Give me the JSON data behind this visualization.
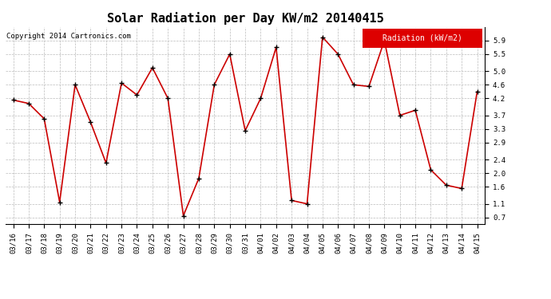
{
  "title": "Solar Radiation per Day KW/m2 20140415",
  "copyright_text": "Copyright 2014 Cartronics.com",
  "legend_label": "Radiation (kW/m2)",
  "dates": [
    "03/16",
    "03/17",
    "03/18",
    "03/19",
    "03/20",
    "03/21",
    "03/22",
    "03/23",
    "03/24",
    "03/25",
    "03/26",
    "03/27",
    "03/28",
    "03/29",
    "03/30",
    "03/31",
    "04/01",
    "04/02",
    "04/03",
    "04/04",
    "04/05",
    "04/06",
    "04/07",
    "04/08",
    "04/09",
    "04/10",
    "04/11",
    "04/12",
    "04/13",
    "04/14",
    "04/15"
  ],
  "values": [
    4.15,
    4.05,
    3.6,
    1.15,
    4.6,
    3.5,
    2.3,
    4.65,
    4.3,
    5.1,
    4.2,
    0.75,
    1.85,
    4.6,
    5.5,
    3.25,
    4.2,
    5.7,
    1.2,
    1.1,
    6.0,
    5.5,
    4.6,
    4.55,
    5.9,
    3.7,
    3.85,
    2.1,
    1.65,
    1.55,
    4.4
  ],
  "line_color": "#cc0000",
  "marker_color": "black",
  "marker_style": "+",
  "marker_size": 5,
  "line_width": 1.2,
  "background_color": "#ffffff",
  "grid_color": "#bbbbbb",
  "ylim": [
    0.5,
    6.3
  ],
  "yticks": [
    0.7,
    1.1,
    1.6,
    2.0,
    2.4,
    2.9,
    3.3,
    3.7,
    4.2,
    4.6,
    5.0,
    5.5,
    5.9
  ],
  "title_fontsize": 11,
  "tick_fontsize": 6.5,
  "copyright_fontsize": 6.5,
  "legend_bg": "#dd0000",
  "legend_fg": "#ffffff",
  "legend_fontsize": 7
}
